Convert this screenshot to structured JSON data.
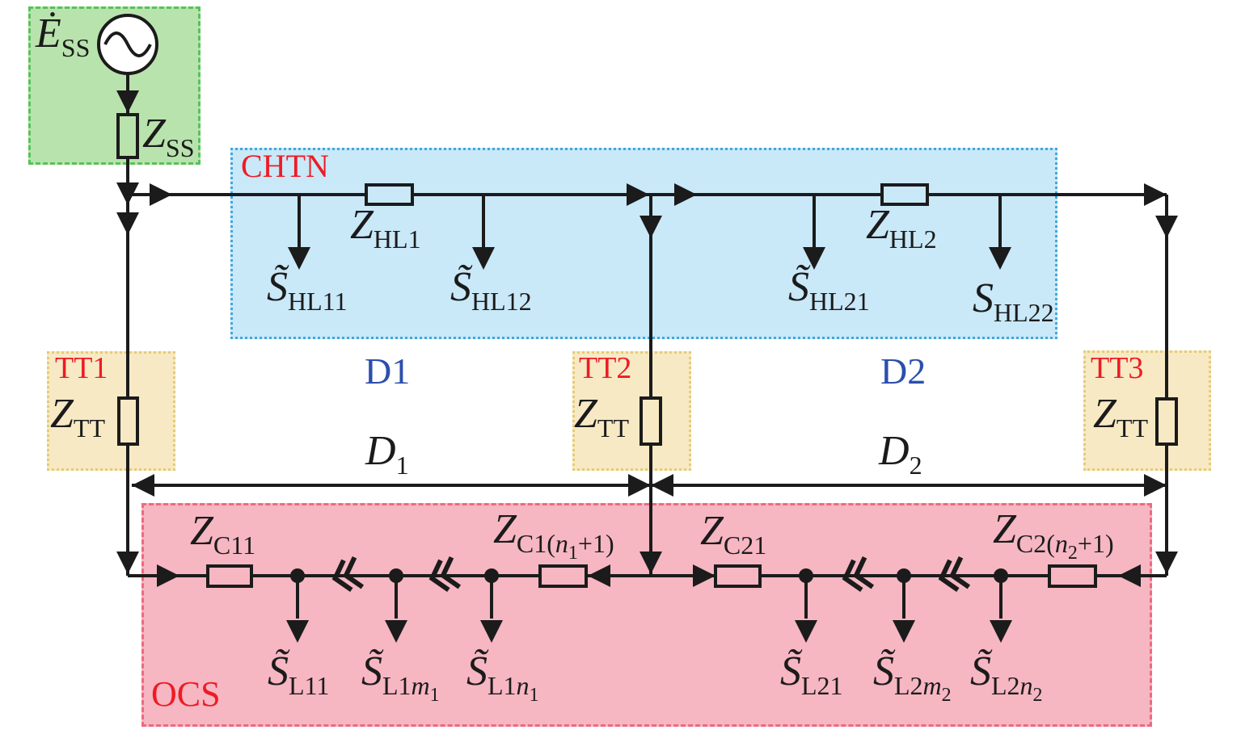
{
  "diagram": {
    "region_labels": {
      "chtn": "CHTN",
      "tt1": "TT1",
      "tt2": "TT2",
      "tt3": "TT3",
      "d1": "D1",
      "d2": "D2",
      "ocs": "OCS"
    },
    "colors": {
      "substation_fill": "#b9e3ad",
      "substation_border": "#57c25b",
      "chtn_fill": "#c9e8f8",
      "chtn_border": "#3fa8de",
      "tt_fill": "#f7e9c4",
      "tt_border": "#e6cb74",
      "ocs_fill": "#f6b6c2",
      "ocs_border": "#f0687f",
      "region_label_red": "#ed1c24",
      "section_label_blue": "#2b4fae",
      "wire": "#1b1b1b"
    },
    "formulas": {
      "e_ss": [
        {
          "t": "Ė",
          "s": "bi"
        },
        {
          "t": "SS",
          "s": "sr"
        }
      ],
      "z_ss": [
        {
          "t": "Z",
          "s": "bi"
        },
        {
          "t": "SS",
          "s": "sr"
        }
      ],
      "z_hl1": [
        {
          "t": "Z",
          "s": "bi"
        },
        {
          "t": "HL1",
          "s": "sr"
        }
      ],
      "z_hl2": [
        {
          "t": "Z",
          "s": "bi"
        },
        {
          "t": "HL2",
          "s": "sr"
        }
      ],
      "s_hl11": [
        {
          "t": "S̃",
          "s": "bi"
        },
        {
          "t": "HL11",
          "s": "sr"
        }
      ],
      "s_hl12": [
        {
          "t": "S̃",
          "s": "bi"
        },
        {
          "t": "HL12",
          "s": "sr"
        }
      ],
      "s_hl21": [
        {
          "t": "S̃",
          "s": "bi"
        },
        {
          "t": "HL21",
          "s": "sr"
        }
      ],
      "s_hl22": [
        {
          "t": "S",
          "s": "bi"
        },
        {
          "t": "HL22",
          "s": "sr"
        }
      ],
      "z_tt": [
        {
          "t": "Z",
          "s": "bi"
        },
        {
          "t": "TT",
          "s": "sr"
        }
      ],
      "d1_dim": [
        {
          "t": "D",
          "s": "bi"
        },
        {
          "t": "1",
          "s": "sr"
        }
      ],
      "d2_dim": [
        {
          "t": "D",
          "s": "bi"
        },
        {
          "t": "2",
          "s": "sr"
        }
      ],
      "z_c11": [
        {
          "t": "Z",
          "s": "bi"
        },
        {
          "t": "C11",
          "s": "sr"
        }
      ],
      "z_c1n1": [
        {
          "t": "Z",
          "s": "bi"
        },
        {
          "t": "C1(",
          "s": "sr"
        },
        {
          "t": "n",
          "s": "si"
        },
        {
          "t": "1",
          "s": "ssr"
        },
        {
          "t": "+1)",
          "s": "sr"
        }
      ],
      "z_c21": [
        {
          "t": "Z",
          "s": "bi"
        },
        {
          "t": "C21",
          "s": "sr"
        }
      ],
      "z_c2n2": [
        {
          "t": "Z",
          "s": "bi"
        },
        {
          "t": "C2(",
          "s": "sr"
        },
        {
          "t": "n",
          "s": "si"
        },
        {
          "t": "2",
          "s": "ssr"
        },
        {
          "t": "+1)",
          "s": "sr"
        }
      ],
      "s_l11": [
        {
          "t": "S̃",
          "s": "bi"
        },
        {
          "t": "L11",
          "s": "sr"
        }
      ],
      "s_l1m1": [
        {
          "t": "S̃",
          "s": "bi"
        },
        {
          "t": "L1",
          "s": "sr"
        },
        {
          "t": "m",
          "s": "si"
        },
        {
          "t": "1",
          "s": "ssr"
        }
      ],
      "s_l1n1": [
        {
          "t": "S̃",
          "s": "bi"
        },
        {
          "t": "L1",
          "s": "sr"
        },
        {
          "t": "n",
          "s": "si"
        },
        {
          "t": "1",
          "s": "ssr"
        }
      ],
      "s_l21": [
        {
          "t": "S̃",
          "s": "bi"
        },
        {
          "t": "L21",
          "s": "sr"
        }
      ],
      "s_l2m2": [
        {
          "t": "S̃",
          "s": "bi"
        },
        {
          "t": "L2",
          "s": "sr"
        },
        {
          "t": "m",
          "s": "si"
        },
        {
          "t": "2",
          "s": "ssr"
        }
      ],
      "s_l2n2": [
        {
          "t": "S̃",
          "s": "bi"
        },
        {
          "t": "L2",
          "s": "sr"
        },
        {
          "t": "n",
          "s": "si"
        },
        {
          "t": "2",
          "s": "ssr"
        }
      ]
    }
  }
}
